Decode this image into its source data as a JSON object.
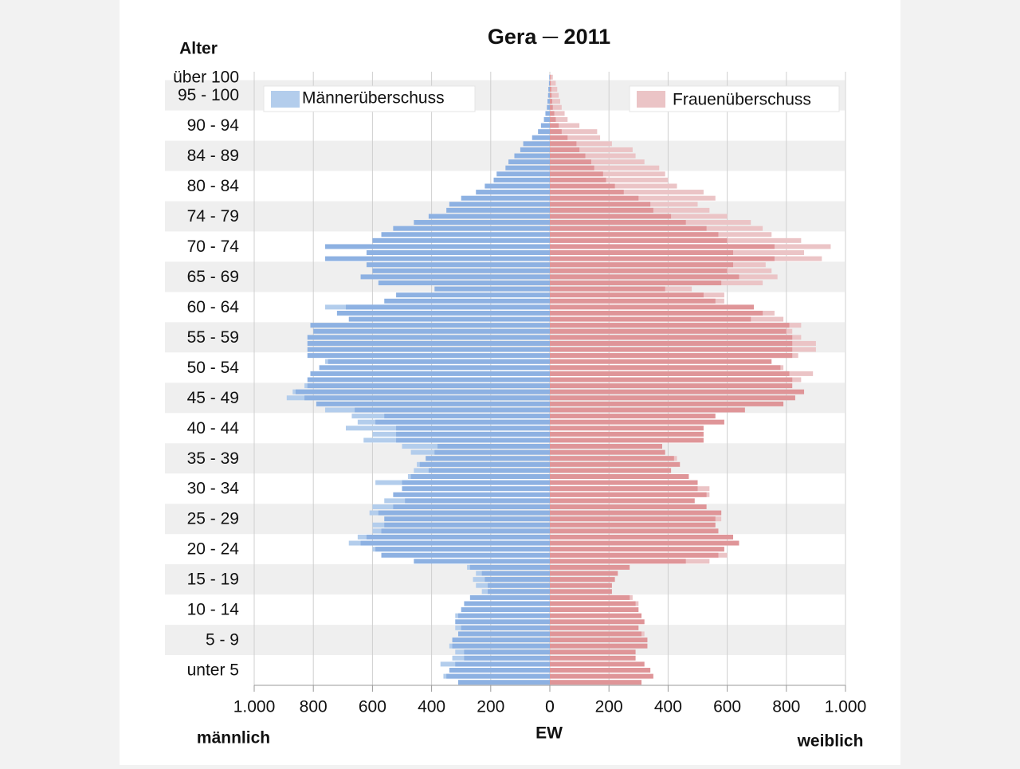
{
  "chart_data": {
    "type": "population-pyramid",
    "title": "Gera ─ 2011",
    "y_axis_label": "Alter",
    "x_axis_label": "EW",
    "left_label": "männlich",
    "right_label": "weiblich",
    "categories": [
      null,
      null,
      "unter 5",
      null,
      null,
      null,
      null,
      "5 - 9",
      null,
      null,
      null,
      null,
      "10 - 14",
      null,
      null,
      null,
      null,
      "15 - 19",
      null,
      null,
      null,
      null,
      "20 - 24",
      null,
      null,
      null,
      null,
      "25 - 29",
      null,
      null,
      null,
      null,
      "30 - 34",
      null,
      null,
      null,
      null,
      "35 - 39",
      null,
      null,
      null,
      null,
      "40 - 44",
      null,
      null,
      null,
      null,
      "45 - 49",
      null,
      null,
      null,
      null,
      "50 - 54",
      null,
      null,
      null,
      null,
      "55 - 59",
      null,
      null,
      null,
      null,
      "60 - 64",
      null,
      null,
      null,
      null,
      "65 - 69",
      null,
      null,
      null,
      null,
      "70 - 74",
      null,
      null,
      null,
      null,
      "74 - 79",
      null,
      null,
      null,
      null,
      "80 - 84",
      null,
      null,
      null,
      null,
      "84 - 89",
      null,
      null,
      null,
      null,
      "90 - 94",
      null,
      null,
      null,
      null,
      "95 - 100",
      null,
      null,
      "über 100"
    ],
    "series": [
      {
        "name": "Männerüberschuss",
        "side": "left",
        "color": "#b3cdec",
        "bar_color": "#8db1e2",
        "values": [
          310,
          360,
          340,
          370,
          330,
          320,
          340,
          330,
          310,
          320,
          320,
          320,
          300,
          290,
          270,
          230,
          250,
          260,
          250,
          280,
          460,
          570,
          600,
          680,
          650,
          600,
          600,
          560,
          610,
          600,
          560,
          530,
          500,
          590,
          480,
          460,
          450,
          420,
          470,
          500,
          630,
          600,
          690,
          650,
          670,
          760,
          790,
          890,
          870,
          830,
          820,
          810,
          780,
          760,
          820,
          820,
          820,
          820,
          800,
          810,
          680,
          720,
          760,
          560,
          520,
          390,
          580,
          640,
          600,
          620,
          760,
          620,
          760,
          600,
          570,
          530,
          460,
          410,
          350,
          340,
          300,
          250,
          220,
          190,
          180,
          150,
          140,
          120,
          100,
          90,
          60,
          40,
          30,
          20,
          15,
          10,
          8,
          6,
          5,
          3,
          2
        ]
      },
      {
        "name": "Frauenüberschuss",
        "side": "right",
        "color": "#ebc4c6",
        "bar_color": "#df9598",
        "values": [
          310,
          350,
          340,
          320,
          290,
          290,
          330,
          330,
          320,
          300,
          320,
          310,
          300,
          300,
          280,
          210,
          210,
          220,
          230,
          270,
          540,
          600,
          590,
          640,
          620,
          570,
          560,
          580,
          580,
          530,
          490,
          540,
          540,
          500,
          470,
          410,
          440,
          430,
          390,
          380,
          520,
          520,
          520,
          590,
          560,
          660,
          790,
          830,
          860,
          820,
          850,
          890,
          790,
          750,
          840,
          900,
          900,
          850,
          820,
          850,
          790,
          760,
          690,
          590,
          590,
          480,
          720,
          770,
          750,
          730,
          920,
          860,
          950,
          850,
          750,
          720,
          680,
          600,
          540,
          500,
          560,
          520,
          430,
          400,
          390,
          370,
          320,
          290,
          280,
          210,
          170,
          160,
          100,
          60,
          50,
          40,
          35,
          30,
          25,
          20,
          10
        ]
      }
    ],
    "xlim": [
      0,
      1000
    ],
    "xticks": [
      0,
      200,
      400,
      600,
      800,
      {
        "value": 1000,
        "label": "1.000"
      }
    ],
    "grid": true
  }
}
